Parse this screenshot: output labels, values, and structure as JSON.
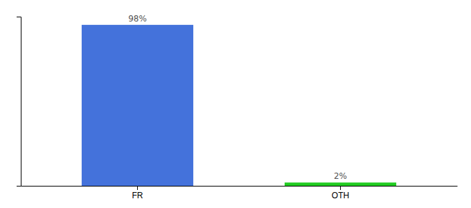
{
  "chart_data": {
    "type": "bar",
    "categories": [
      "FR",
      "OTH"
    ],
    "values": [
      98,
      2
    ],
    "value_labels": [
      "98%",
      "2%"
    ],
    "colors": [
      "#4472db",
      "#22cc22"
    ],
    "ylim": [
      0,
      103
    ],
    "yticks": [],
    "data_labels": true,
    "tick_labels": "x",
    "grid": false
  }
}
